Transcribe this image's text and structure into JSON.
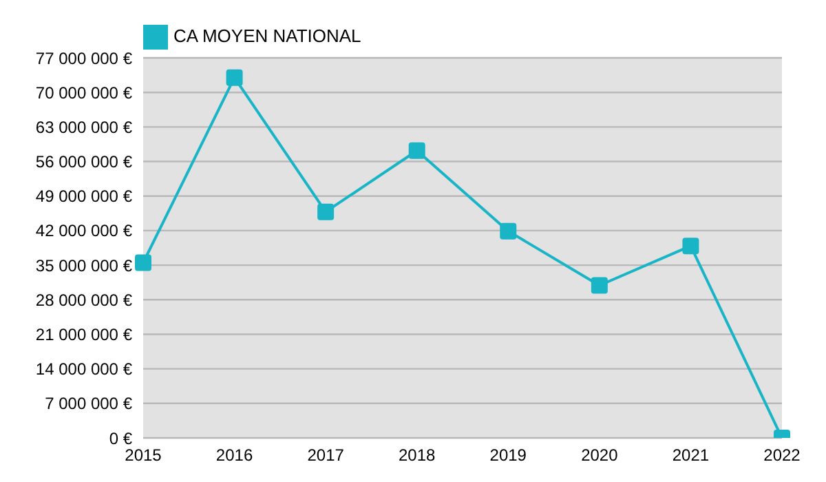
{
  "chart_data": {
    "type": "line",
    "categories": [
      "2015",
      "2016",
      "2017",
      "2018",
      "2019",
      "2020",
      "2021",
      "2022"
    ],
    "series": [
      {
        "name": "CA MOYEN NATIONAL",
        "color": "#19b4c6",
        "values": [
          35500000,
          73000000,
          45800000,
          58200000,
          41900000,
          30900000,
          38900000,
          0
        ]
      }
    ],
    "ylim": [
      0,
      77000000
    ],
    "yticks": [
      {
        "value": 0,
        "label": "0 €"
      },
      {
        "value": 7000000,
        "label": "7 000 000 €"
      },
      {
        "value": 14000000,
        "label": "14 000 000 €"
      },
      {
        "value": 21000000,
        "label": "21 000 000 €"
      },
      {
        "value": 28000000,
        "label": "28 000 000 €"
      },
      {
        "value": 35000000,
        "label": "35 000 000 €"
      },
      {
        "value": 42000000,
        "label": "42 000 000 €"
      },
      {
        "value": 49000000,
        "label": "49 000 000 €"
      },
      {
        "value": 56000000,
        "label": "56 000 000 €"
      },
      {
        "value": 63000000,
        "label": "63 000 000 €"
      },
      {
        "value": 70000000,
        "label": "70 000 000 €"
      },
      {
        "value": 77000000,
        "label": "77 000 000 €"
      }
    ],
    "grid": "y",
    "legend": "top left",
    "marker": "square",
    "line_style": "solid"
  }
}
